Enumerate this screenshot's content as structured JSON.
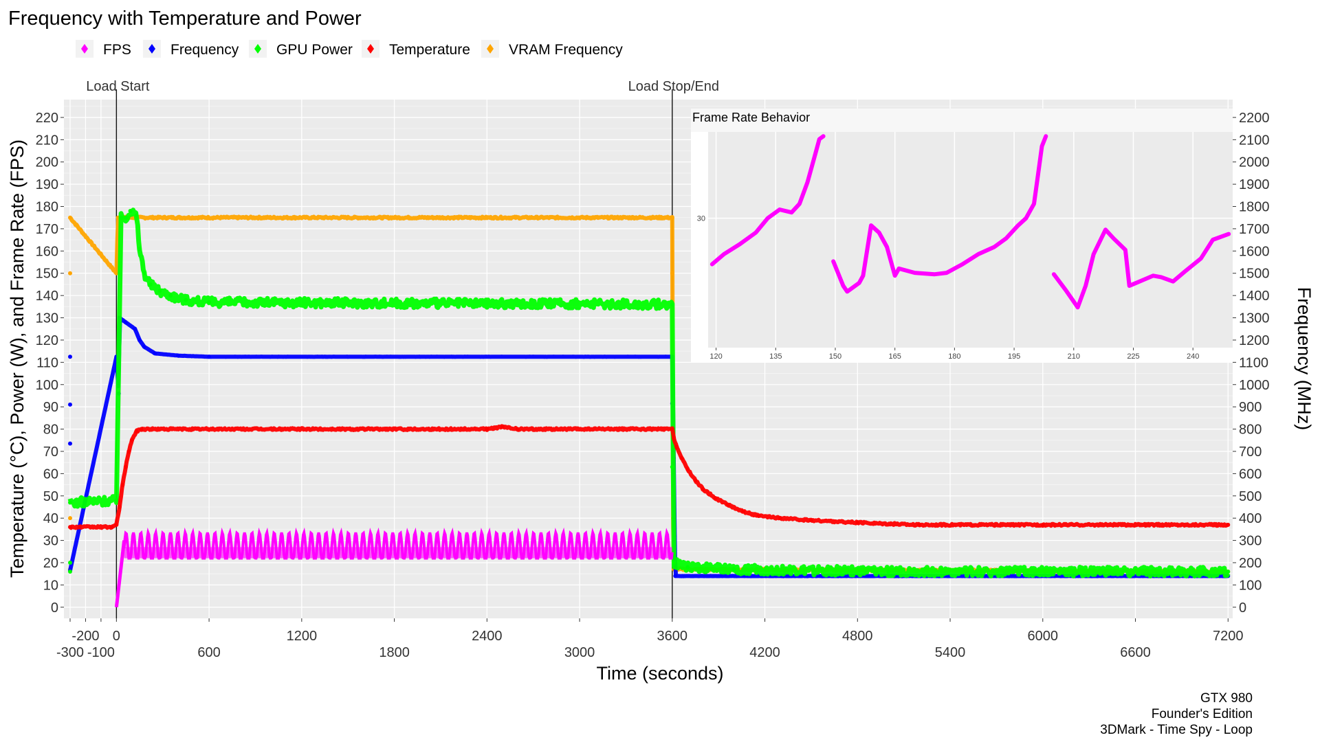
{
  "chart_data": [
    {
      "type": "scatter",
      "title": "Frequency with Temperature and Power",
      "xlabel": "Time (seconds)",
      "ylabel_left": "Temperature (°C), Power (W), and Frame Rate (FPS)",
      "ylabel_right": "Frequency (MHz)",
      "xlim": [
        -340,
        7230
      ],
      "ylim_left": [
        -5,
        228
      ],
      "ylim_right": [
        -50,
        2280
      ],
      "x_ticks_upper": [
        -200,
        0,
        1200,
        2400,
        3600,
        4800,
        6000,
        7200
      ],
      "x_ticks_lower": [
        -300,
        -100,
        600,
        1800,
        3000,
        4200,
        5400,
        6600
      ],
      "y_ticks_left": [
        0,
        10,
        20,
        30,
        40,
        50,
        60,
        70,
        80,
        90,
        100,
        110,
        120,
        130,
        140,
        150,
        160,
        170,
        180,
        190,
        200,
        210,
        220
      ],
      "y_ticks_right": [
        0,
        100,
        200,
        300,
        400,
        500,
        600,
        700,
        800,
        900,
        1000,
        1100,
        1200,
        1300,
        1400,
        1500,
        1600,
        1700,
        1800,
        1900,
        2000,
        2100,
        2200
      ],
      "grid": true,
      "legend_position": "top",
      "annotations": [
        {
          "x": 0,
          "label": "Load Start"
        },
        {
          "x": 3600,
          "label": "Load Stop/End"
        }
      ],
      "caption": [
        "GTX 980",
        "Founder's Edition",
        "3DMark - Time Spy - Loop"
      ],
      "series": [
        {
          "name": "FPS",
          "color": "#ff00ff",
          "axis": "left",
          "phases": [
            {
              "x_start": 0,
              "x_end": 50,
              "values_start": 0,
              "values_end": 30
            },
            {
              "x_start": 50,
              "x_end": 3600,
              "oscillation_min": 22,
              "oscillation_max": 36
            }
          ]
        },
        {
          "name": "Frequency",
          "color": "#0000ff",
          "axis": "right",
          "points": [
            [
              -300,
              165
            ],
            [
              -300,
              1125
            ],
            [
              -300,
              910
            ],
            [
              -300,
              735
            ],
            [
              0,
              1125
            ],
            [
              15,
              960
            ],
            [
              20,
              1300
            ],
            [
              60,
              1280
            ],
            [
              120,
              1250
            ],
            [
              150,
              1200
            ],
            [
              180,
              1170
            ],
            [
              250,
              1140
            ],
            [
              400,
              1130
            ],
            [
              600,
              1125
            ],
            [
              3600,
              1125
            ],
            [
              3600,
              915
            ],
            [
              3610,
              670
            ],
            [
              3615,
              320
            ],
            [
              3620,
              140
            ],
            [
              7200,
              140
            ]
          ]
        },
        {
          "name": "GPU Power",
          "color": "#00ff00",
          "axis": "left",
          "points": [
            [
              -300,
              47
            ],
            [
              -300,
              20
            ],
            [
              -300,
              16
            ],
            [
              0,
              48
            ],
            [
              30,
              175
            ],
            [
              60,
              175
            ],
            [
              90,
              178
            ],
            [
              130,
              176
            ],
            [
              150,
              161
            ],
            [
              180,
              150
            ],
            [
              220,
              145
            ],
            [
              280,
              142
            ],
            [
              350,
              140
            ],
            [
              450,
              138
            ],
            [
              600,
              137
            ],
            [
              3600,
              136
            ],
            [
              3600,
              63
            ],
            [
              3610,
              20
            ],
            [
              3700,
              18
            ],
            [
              4000,
              17
            ],
            [
              5000,
              16
            ],
            [
              7200,
              16
            ]
          ]
        },
        {
          "name": "Temperature",
          "color": "#ff0000",
          "axis": "left",
          "points": [
            [
              -300,
              36
            ],
            [
              -30,
              36
            ],
            [
              0,
              37
            ],
            [
              20,
              45
            ],
            [
              40,
              55
            ],
            [
              60,
              63
            ],
            [
              80,
              70
            ],
            [
              100,
              75
            ],
            [
              130,
              79
            ],
            [
              160,
              80
            ],
            [
              2400,
              80
            ],
            [
              2500,
              81
            ],
            [
              2600,
              80
            ],
            [
              3600,
              80
            ],
            [
              3610,
              76
            ],
            [
              3630,
              72
            ],
            [
              3660,
              67
            ],
            [
              3700,
              62
            ],
            [
              3750,
              57
            ],
            [
              3800,
              53
            ],
            [
              3880,
              49
            ],
            [
              3960,
              46
            ],
            [
              4060,
              43
            ],
            [
              4160,
              41
            ],
            [
              4300,
              40
            ],
            [
              4500,
              39
            ],
            [
              4800,
              38
            ],
            [
              5200,
              37
            ],
            [
              6000,
              37
            ],
            [
              7200,
              37
            ]
          ]
        },
        {
          "name": "VRAM Frequency",
          "color": "#ffa500",
          "axis": "left",
          "points": [
            [
              -300,
              175
            ],
            [
              -300,
              150
            ],
            [
              -300,
              40
            ],
            [
              -300,
              17
            ],
            [
              0,
              150
            ],
            [
              10,
              175
            ],
            [
              3600,
              175
            ],
            [
              3600,
              150
            ],
            [
              3605,
              40
            ],
            [
              3610,
              17
            ],
            [
              7200,
              16
            ]
          ]
        }
      ]
    },
    {
      "type": "scatter",
      "title": "Frame Rate Behavior",
      "xlim": [
        118,
        250
      ],
      "x_ticks": [
        120,
        135,
        150,
        165,
        180,
        195,
        210,
        225,
        240
      ],
      "y_ticks": [
        30
      ],
      "ylim": [
        21,
        36
      ],
      "series": [
        {
          "name": "FPS",
          "color": "#ff00ff",
          "points": [
            [
              119,
              26.8
            ],
            [
              122,
              27.5
            ],
            [
              126,
              28.2
            ],
            [
              130,
              29
            ],
            [
              133,
              30
            ],
            [
              136,
              30.6
            ],
            [
              139,
              30.4
            ],
            [
              141,
              31
            ],
            [
              143,
              32.5
            ],
            [
              145,
              34.5
            ],
            [
              146,
              35.5
            ],
            [
              147,
              35.7
            ],
            [
              149.5,
              27
            ],
            [
              152,
              25.3
            ],
            [
              153,
              24.9
            ],
            [
              156,
              25.5
            ],
            [
              157,
              26
            ],
            [
              159,
              29.5
            ],
            [
              161,
              29
            ],
            [
              163,
              28
            ],
            [
              165,
              26
            ],
            [
              166,
              26.5
            ],
            [
              170,
              26.2
            ],
            [
              175,
              26.1
            ],
            [
              178,
              26.2
            ],
            [
              182,
              26.8
            ],
            [
              186,
              27.5
            ],
            [
              190,
              28
            ],
            [
              193,
              28.6
            ],
            [
              196,
              29.5
            ],
            [
              198,
              30
            ],
            [
              199,
              30.5
            ],
            [
              200,
              31
            ],
            [
              201,
              33
            ],
            [
              202,
              35
            ],
            [
              203,
              35.7
            ],
            [
              205,
              26.1
            ],
            [
              208,
              25
            ],
            [
              210,
              24.2
            ],
            [
              211,
              23.8
            ],
            [
              213,
              25.3
            ],
            [
              215,
              27.5
            ],
            [
              218,
              29.2
            ],
            [
              220,
              28.6
            ],
            [
              223,
              27.8
            ],
            [
              224,
              25.3
            ],
            [
              230,
              26
            ],
            [
              232,
              25.9
            ],
            [
              235,
              25.6
            ],
            [
              238,
              26.3
            ],
            [
              242,
              27.2
            ],
            [
              245,
              28.5
            ],
            [
              249,
              28.9
            ]
          ]
        }
      ]
    }
  ]
}
